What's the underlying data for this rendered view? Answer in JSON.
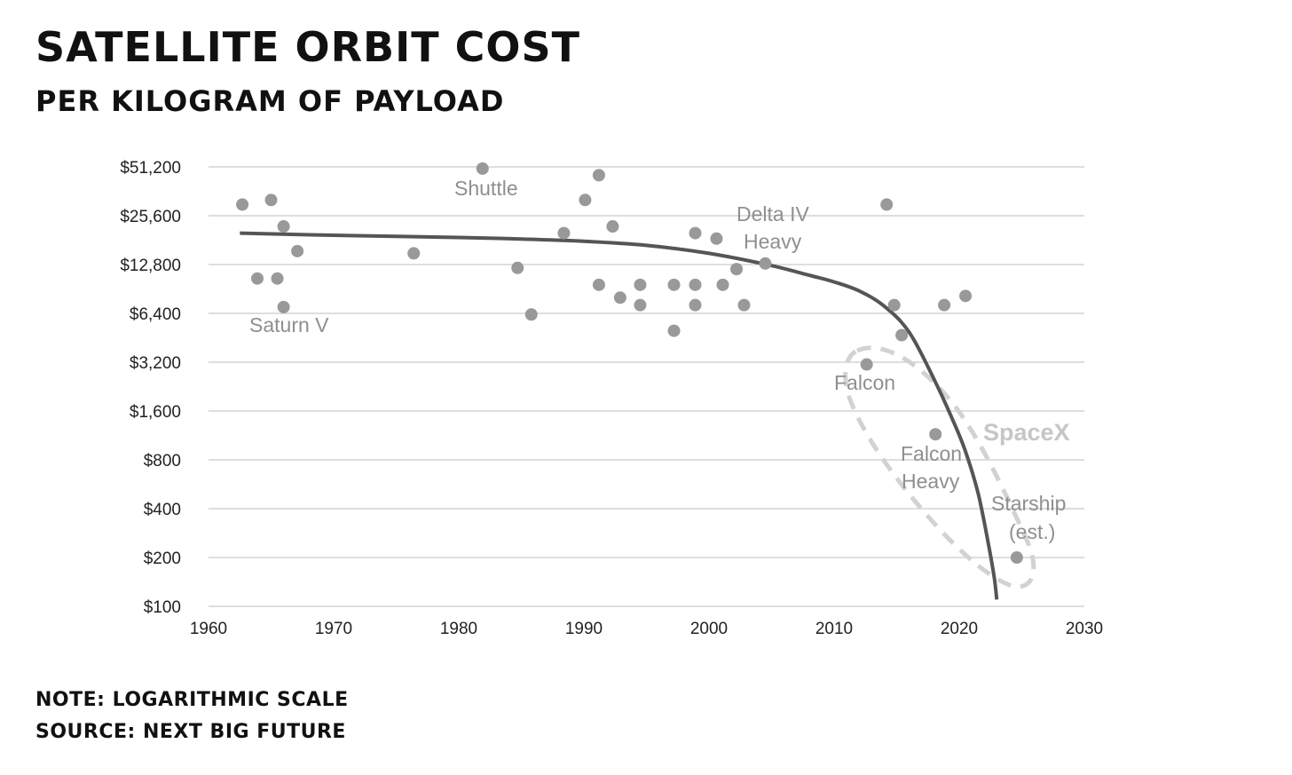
{
  "header": {
    "title": "Satellite Orbit Cost",
    "subtitle": "Per kilogram of payload"
  },
  "footer": {
    "note": "Note: Logarithmic scale",
    "source": "Source: Next Big Future"
  },
  "colors": {
    "gridline": "#d4d4d4",
    "point": "#999999",
    "trend": "#555555",
    "annotation": "#8f8f8f",
    "spacex_group": "#d2d2d2"
  },
  "chart_data": {
    "type": "scatter",
    "title": "Satellite Orbit Cost",
    "subtitle": "Per kilogram of payload",
    "xlabel": "",
    "ylabel": "",
    "xlim": [
      1960,
      2030
    ],
    "ylim": [
      100,
      51200
    ],
    "y_scale": "log2",
    "grid": true,
    "x_ticks": [
      1960,
      1970,
      1980,
      1990,
      2000,
      2010,
      2020,
      2030
    ],
    "x_tick_labels": [
      "1960",
      "1970",
      "1980",
      "1990",
      "2000",
      "2010",
      "2020",
      "2030"
    ],
    "y_ticks": [
      100,
      200,
      400,
      800,
      1600,
      3200,
      6400,
      12800,
      25600,
      51200
    ],
    "y_tick_labels": [
      "$100",
      "$200",
      "$400",
      "$800",
      "$1,600",
      "$3,200",
      "$6,400",
      "$12,800",
      "$25,600",
      "$51,200"
    ],
    "points": [
      {
        "x": 1962.7,
        "y": 30000
      },
      {
        "x": 1963.9,
        "y": 10500
      },
      {
        "x": 1965.0,
        "y": 32000
      },
      {
        "x": 1965.5,
        "y": 10500
      },
      {
        "x": 1966.0,
        "y": 22000
      },
      {
        "x": 1966.0,
        "y": 7000
      },
      {
        "x": 1967.1,
        "y": 15500
      },
      {
        "x": 1976.4,
        "y": 15000
      },
      {
        "x": 1981.9,
        "y": 50000
      },
      {
        "x": 1984.7,
        "y": 12200
      },
      {
        "x": 1985.8,
        "y": 6300
      },
      {
        "x": 1988.4,
        "y": 20000
      },
      {
        "x": 1990.1,
        "y": 32000
      },
      {
        "x": 1991.2,
        "y": 45500
      },
      {
        "x": 1991.2,
        "y": 9600
      },
      {
        "x": 1992.3,
        "y": 22000
      },
      {
        "x": 1992.9,
        "y": 8000
      },
      {
        "x": 1994.5,
        "y": 9600
      },
      {
        "x": 1994.5,
        "y": 7200
      },
      {
        "x": 1997.2,
        "y": 9600
      },
      {
        "x": 1997.2,
        "y": 5000
      },
      {
        "x": 1998.9,
        "y": 20000
      },
      {
        "x": 1998.9,
        "y": 9600
      },
      {
        "x": 1998.9,
        "y": 7200
      },
      {
        "x": 2000.6,
        "y": 18500
      },
      {
        "x": 2001.1,
        "y": 9600
      },
      {
        "x": 2002.2,
        "y": 12000
      },
      {
        "x": 2002.8,
        "y": 7200
      },
      {
        "x": 2004.5,
        "y": 13000
      },
      {
        "x": 2012.6,
        "y": 3100
      },
      {
        "x": 2014.2,
        "y": 30000
      },
      {
        "x": 2014.8,
        "y": 7200
      },
      {
        "x": 2015.4,
        "y": 4700
      },
      {
        "x": 2018.1,
        "y": 1150
      },
      {
        "x": 2018.8,
        "y": 7200
      },
      {
        "x": 2020.5,
        "y": 8200
      },
      {
        "x": 2024.6,
        "y": 200
      }
    ],
    "trend_line": {
      "x": [
        1962.5,
        1970,
        1980,
        1985,
        1990,
        1995,
        2000,
        2005,
        2008,
        2010,
        2012,
        2014,
        2016,
        2018,
        2019.5,
        2020.5,
        2021.5,
        2022.3,
        2022.8,
        2023.0
      ],
      "y": [
        20000,
        19400,
        18800,
        18400,
        17800,
        16800,
        15000,
        12600,
        11000,
        10000,
        8800,
        7100,
        4900,
        2500,
        1400,
        900,
        500,
        250,
        150,
        110
      ]
    },
    "annotations": [
      {
        "text": "Saturn V"
      },
      {
        "text": "Shuttle"
      },
      {
        "text": "Delta IV"
      },
      {
        "text": "Heavy"
      },
      {
        "text": "Falcon"
      },
      {
        "text": "Falcon"
      },
      {
        "text": "Heavy"
      },
      {
        "text": "Starship"
      },
      {
        "text": "(est.)"
      },
      {
        "text": "SpaceX"
      }
    ]
  }
}
